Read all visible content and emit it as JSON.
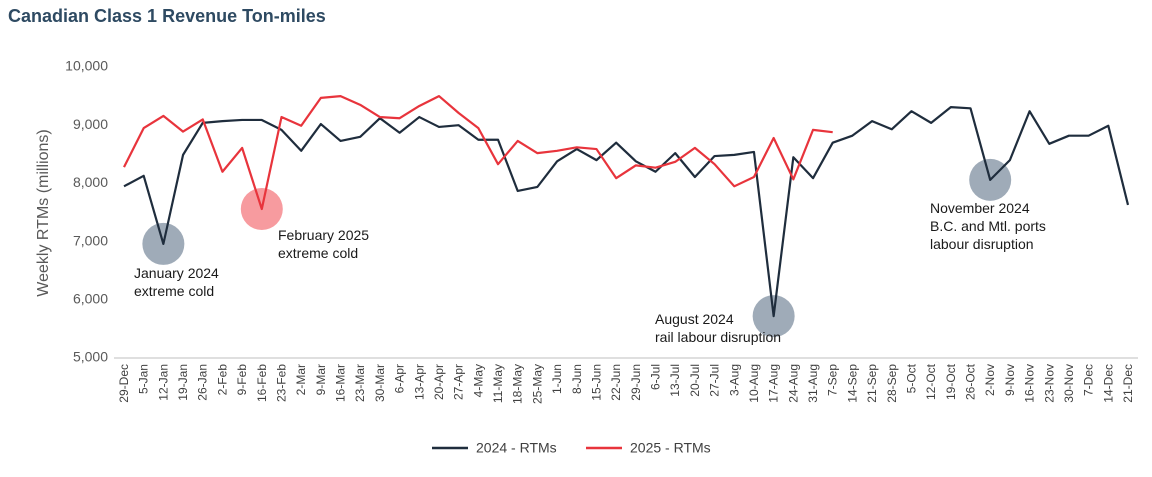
{
  "chart_data": {
    "type": "line",
    "title": "Canadian Class 1 Revenue Ton-miles",
    "y_label": "Weekly RTMs (millions)",
    "categories": [
      "29-Dec",
      "5-Jan",
      "12-Jan",
      "19-Jan",
      "26-Jan",
      "2-Feb",
      "9-Feb",
      "16-Feb",
      "23-Feb",
      "2-Mar",
      "9-Mar",
      "16-Mar",
      "23-Mar",
      "30-Mar",
      "6-Apr",
      "13-Apr",
      "20-Apr",
      "27-Apr",
      "4-May",
      "11-May",
      "18-May",
      "25-May",
      "1-Jun",
      "8-Jun",
      "15-Jun",
      "22-Jun",
      "29-Jun",
      "6-Jul",
      "13-Jul",
      "20-Jul",
      "27-Jul",
      "3-Aug",
      "10-Aug",
      "17-Aug",
      "24-Aug",
      "31-Aug",
      "7-Sep",
      "14-Sep",
      "21-Sep",
      "28-Sep",
      "5-Oct",
      "12-Oct",
      "19-Oct",
      "26-Oct",
      "2-Nov",
      "9-Nov",
      "16-Nov",
      "23-Nov",
      "30-Nov",
      "7-Dec",
      "14-Dec",
      "21-Dec"
    ],
    "series": [
      {
        "name": "2024 - RTMs",
        "color": "#1f2d3d",
        "values": [
          7950,
          8130,
          6960,
          8490,
          9040,
          9070,
          9090,
          9090,
          8920,
          8560,
          9020,
          8730,
          8800,
          9120,
          8870,
          9140,
          8970,
          9000,
          8750,
          8750,
          7870,
          7940,
          8380,
          8590,
          8400,
          8700,
          8380,
          8200,
          8520,
          8110,
          8470,
          8490,
          8540,
          5720,
          8450,
          8090,
          8700,
          8820,
          9070,
          8930,
          9240,
          9040,
          9310,
          9290,
          8060,
          8400,
          9240,
          8680,
          8820,
          8820,
          8990,
          7630
        ]
      },
      {
        "name": "2025 - RTMs",
        "color": "#e8343c",
        "values": [
          8280,
          8950,
          9160,
          8890,
          9100,
          8200,
          8610,
          7560,
          9140,
          8990,
          9470,
          9500,
          9350,
          9140,
          9120,
          9330,
          9500,
          9210,
          8950,
          8330,
          8730,
          8520,
          8560,
          8620,
          8590,
          8090,
          8310,
          8270,
          8370,
          8610,
          8330,
          7950,
          8110,
          8780,
          8070,
          8920,
          8880,
          null,
          null,
          null,
          null,
          null,
          null,
          null,
          null,
          null,
          null,
          null,
          null,
          null,
          null,
          null
        ]
      }
    ],
    "ylim": [
      5000,
      10000
    ],
    "yticks": [
      {
        "value": 5000,
        "label": "5,000"
      },
      {
        "value": 6000,
        "label": "6,000"
      },
      {
        "value": 7000,
        "label": "7,000"
      },
      {
        "value": 8000,
        "label": "8,000"
      },
      {
        "value": 9000,
        "label": "9,000"
      },
      {
        "value": 10000,
        "label": "10,000"
      }
    ],
    "annotations": [
      [
        "January 2024",
        "extreme cold"
      ],
      [
        "February 2025",
        "extreme cold"
      ],
      [
        "August 2024",
        "rail labour disruption"
      ],
      [
        "November 2024",
        "B.C. and Mtl. ports",
        "labour disruption"
      ]
    ],
    "legend": "bottom"
  }
}
